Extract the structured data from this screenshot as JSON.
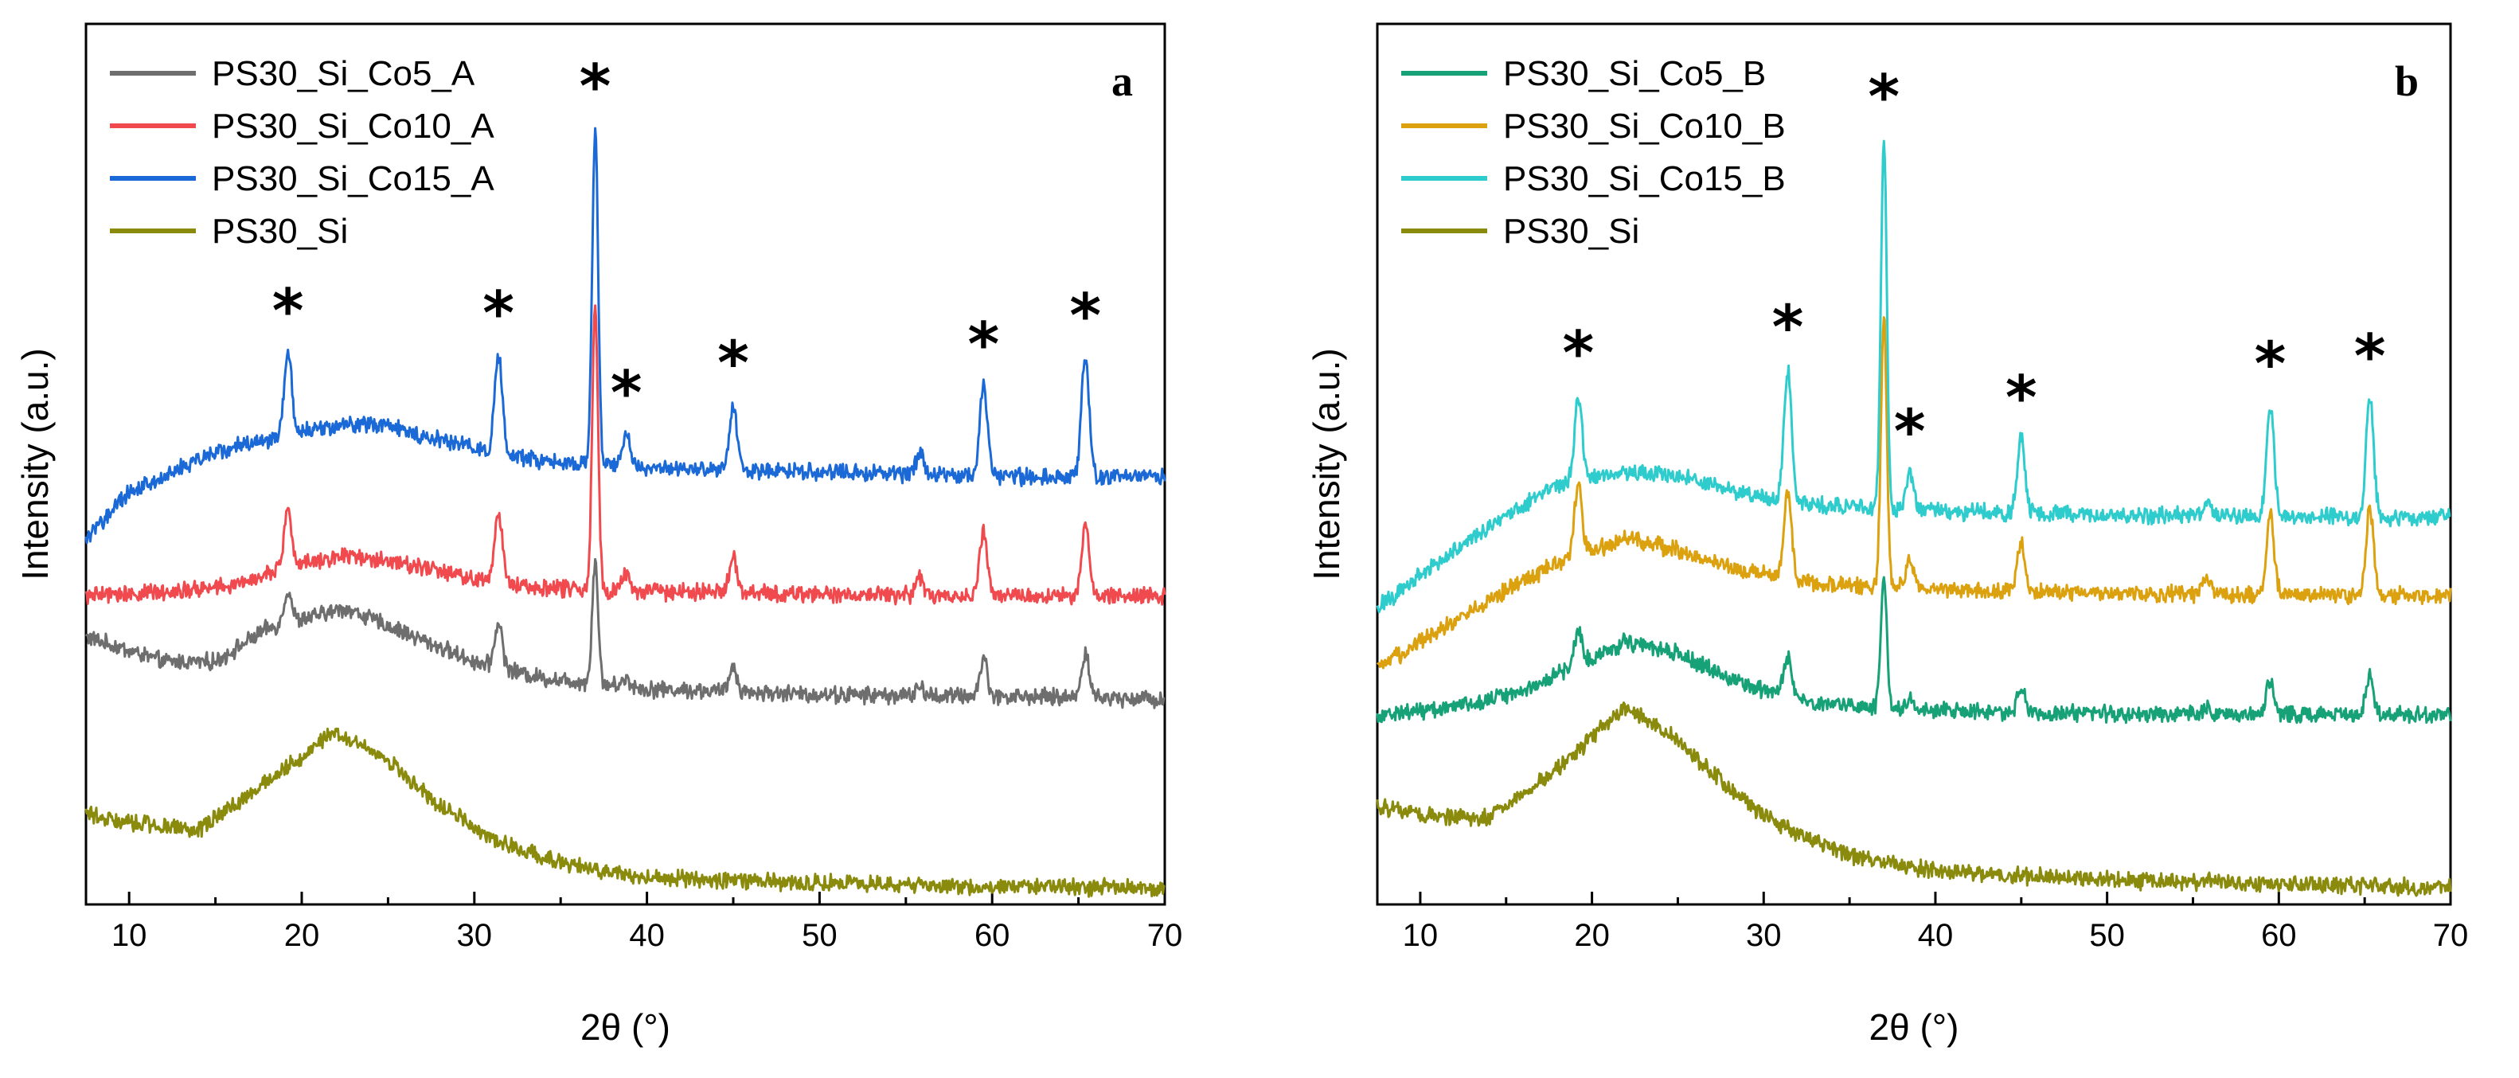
{
  "chart_data": [
    {
      "type": "line",
      "panel_label": "a",
      "xlabel": "2θ (°)",
      "ylabel": "Intensity (a.u.)",
      "xlim": [
        7.5,
        70
      ],
      "xticks": [
        "10",
        "20",
        "30",
        "40",
        "50",
        "60",
        "70"
      ],
      "ylim": [
        -0.2,
        10.5
      ],
      "y_ticks_shown": false,
      "legend_position": "top-left",
      "peak_marker": "*",
      "peak_positions": [
        19.2,
        31.4,
        37.0,
        38.8,
        45.0,
        59.5,
        65.4
      ],
      "series": [
        {
          "name": "PS30_Si_Co5_A",
          "color": "#6e6e6e",
          "offset": 2.3,
          "background": [
            [
              7.5,
              0.75
            ],
            [
              12,
              0.45
            ],
            [
              15,
              0.45
            ],
            [
              18,
              0.85
            ],
            [
              22.5,
              1.1
            ],
            [
              26,
              0.8
            ],
            [
              30,
              0.45
            ],
            [
              34,
              0.25
            ],
            [
              40,
              0.12
            ],
            [
              50,
              0.05
            ],
            [
              60,
              0.03
            ],
            [
              70,
              0.0
            ]
          ],
          "peaks": [
            [
              19.2,
              0.4
            ],
            [
              31.4,
              0.55
            ],
            [
              37.0,
              1.5
            ],
            [
              38.8,
              0.1
            ],
            [
              45.0,
              0.3
            ],
            [
              55.8,
              0.1
            ],
            [
              59.5,
              0.45
            ],
            [
              65.4,
              0.55
            ]
          ]
        },
        {
          "name": "PS30_Si_Co10_A",
          "color": "#f04a4f",
          "offset": 3.55,
          "background": [
            [
              7.5,
              0.0
            ],
            [
              12,
              0.05
            ],
            [
              16,
              0.12
            ],
            [
              19,
              0.35
            ],
            [
              22.5,
              0.5
            ],
            [
              26,
              0.4
            ],
            [
              30,
              0.2
            ],
            [
              34,
              0.1
            ],
            [
              40,
              0.05
            ],
            [
              50,
              0.02
            ],
            [
              60,
              0.0
            ],
            [
              70,
              0.0
            ]
          ],
          "peaks": [
            [
              19.2,
              0.65
            ],
            [
              31.4,
              0.85
            ],
            [
              37.0,
              3.45
            ],
            [
              38.8,
              0.2
            ],
            [
              45.0,
              0.45
            ],
            [
              55.8,
              0.2
            ],
            [
              59.5,
              0.8
            ],
            [
              65.4,
              0.9
            ]
          ]
        },
        {
          "name": "PS30_Si_Co15_A",
          "color": "#1a69d6",
          "offset": 5.0,
          "background": [
            [
              7.5,
              -0.75
            ],
            [
              10,
              -0.2
            ],
            [
              15,
              0.3
            ],
            [
              20,
              0.55
            ],
            [
              24,
              0.65
            ],
            [
              28,
              0.45
            ],
            [
              32,
              0.25
            ],
            [
              36,
              0.15
            ],
            [
              40,
              0.1
            ],
            [
              50,
              0.05
            ],
            [
              60,
              0.0
            ],
            [
              70,
              0.0
            ]
          ],
          "peaks": [
            [
              19.2,
              1.0
            ],
            [
              31.4,
              1.2
            ],
            [
              37.0,
              4.1
            ],
            [
              38.8,
              0.4
            ],
            [
              45.0,
              0.8
            ],
            [
              55.8,
              0.25
            ],
            [
              59.5,
              1.1
            ],
            [
              65.4,
              1.45
            ]
          ]
        },
        {
          "name": "PS30_Si",
          "color": "#8a8a0d",
          "offset": 0.0,
          "background": [
            [
              7.5,
              0.9
            ],
            [
              10,
              0.8
            ],
            [
              14,
              0.7
            ],
            [
              18,
              1.3
            ],
            [
              22,
              1.9
            ],
            [
              25,
              1.55
            ],
            [
              28,
              1.0
            ],
            [
              31,
              0.6
            ],
            [
              35,
              0.3
            ],
            [
              40,
              0.12
            ],
            [
              50,
              0.06
            ],
            [
              60,
              0.02
            ],
            [
              70,
              0.0
            ]
          ],
          "peaks": []
        }
      ]
    },
    {
      "type": "line",
      "panel_label": "b",
      "xlabel": "2θ (°)",
      "ylabel": "Intensity (a.u.)",
      "xlim": [
        7.5,
        70
      ],
      "xticks": [
        "10",
        "20",
        "30",
        "40",
        "50",
        "60",
        "70"
      ],
      "ylim": [
        -0.2,
        10.5
      ],
      "y_ticks_shown": false,
      "legend_position": "top-left",
      "peak_marker": "*",
      "peak_positions": [
        19.2,
        31.4,
        37.0,
        38.5,
        45.0,
        59.5,
        65.3
      ],
      "series": [
        {
          "name": "PS30_Si_Co5_B",
          "color": "#17a177",
          "offset": 2.1,
          "background": [
            [
              7.5,
              0.0
            ],
            [
              12,
              0.1
            ],
            [
              16,
              0.3
            ],
            [
              19,
              0.6
            ],
            [
              22,
              0.9
            ],
            [
              25,
              0.75
            ],
            [
              29,
              0.35
            ],
            [
              33,
              0.15
            ],
            [
              40,
              0.05
            ],
            [
              50,
              0.02
            ],
            [
              70,
              0.0
            ]
          ],
          "peaks": [
            [
              19.2,
              0.4
            ],
            [
              31.4,
              0.5
            ],
            [
              37.0,
              1.6
            ],
            [
              38.5,
              0.1
            ],
            [
              45.0,
              0.3
            ],
            [
              55.8,
              0.1
            ],
            [
              59.5,
              0.4
            ],
            [
              65.3,
              0.5
            ]
          ]
        },
        {
          "name": "PS30_Si_Co10_B",
          "color": "#dba10f",
          "offset": 3.55,
          "background": [
            [
              7.5,
              -0.9
            ],
            [
              10,
              -0.55
            ],
            [
              14,
              -0.05
            ],
            [
              18,
              0.4
            ],
            [
              22,
              0.7
            ],
            [
              25,
              0.55
            ],
            [
              29,
              0.3
            ],
            [
              33,
              0.15
            ],
            [
              40,
              0.08
            ],
            [
              50,
              0.03
            ],
            [
              70,
              0.0
            ]
          ],
          "peaks": [
            [
              19.2,
              0.9
            ],
            [
              31.4,
              1.05
            ],
            [
              37.0,
              3.3
            ],
            [
              38.5,
              0.35
            ],
            [
              45.0,
              0.6
            ],
            [
              55.8,
              0.2
            ],
            [
              59.5,
              1.0
            ],
            [
              65.3,
              1.05
            ]
          ]
        },
        {
          "name": "PS30_Si_Co15_B",
          "color": "#2ecccc",
          "offset": 4.5,
          "background": [
            [
              7.5,
              -1.1
            ],
            [
              10,
              -0.7
            ],
            [
              14,
              -0.1
            ],
            [
              18,
              0.4
            ],
            [
              22,
              0.55
            ],
            [
              25,
              0.5
            ],
            [
              29,
              0.3
            ],
            [
              33,
              0.15
            ],
            [
              40,
              0.08
            ],
            [
              50,
              0.03
            ],
            [
              70,
              0.0
            ]
          ],
          "peaks": [
            [
              19.2,
              1.05
            ],
            [
              31.4,
              1.6
            ],
            [
              37.0,
              4.5
            ],
            [
              38.5,
              0.45
            ],
            [
              45.0,
              0.9
            ],
            [
              55.8,
              0.2
            ],
            [
              59.5,
              1.35
            ],
            [
              65.3,
              1.45
            ]
          ]
        },
        {
          "name": "PS30_Si",
          "color": "#8a8a0d",
          "offset": 0.0,
          "background": [
            [
              7.5,
              1.0
            ],
            [
              10,
              0.9
            ],
            [
              14,
              0.85
            ],
            [
              18,
              1.45
            ],
            [
              22,
              2.2
            ],
            [
              25,
              1.8
            ],
            [
              28,
              1.2
            ],
            [
              31,
              0.75
            ],
            [
              35,
              0.4
            ],
            [
              40,
              0.2
            ],
            [
              50,
              0.1
            ],
            [
              60,
              0.05
            ],
            [
              70,
              0.0
            ]
          ],
          "peaks": []
        }
      ]
    }
  ]
}
